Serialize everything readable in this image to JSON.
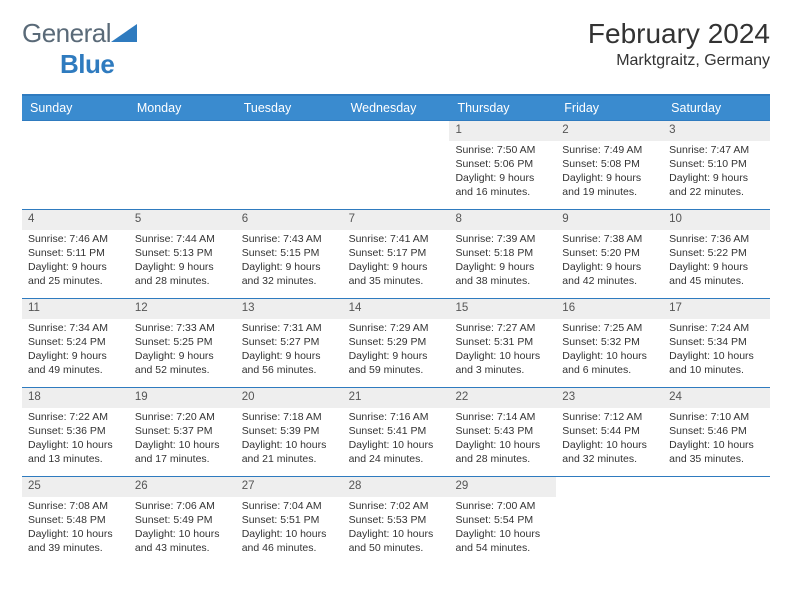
{
  "brand": {
    "part1": "General",
    "part2": "Blue",
    "text_color_1": "#5a6a78",
    "text_color_2": "#2f7bbf",
    "triangle_color": "#2f7bbf"
  },
  "header": {
    "title": "February 2024",
    "location": "Marktgraitz, Germany"
  },
  "colors": {
    "header_bg": "#3a8bcf",
    "header_text": "#ffffff",
    "rule": "#2f7bbf",
    "daynum_bg": "#eeeeee",
    "text": "#333333",
    "page_bg": "#ffffff"
  },
  "day_labels": [
    "Sunday",
    "Monday",
    "Tuesday",
    "Wednesday",
    "Thursday",
    "Friday",
    "Saturday"
  ],
  "layout": {
    "first_index": 4,
    "days_in_month": 29,
    "rows": 5,
    "cols": 7
  },
  "days": {
    "1": {
      "sunrise": "7:50 AM",
      "sunset": "5:06 PM",
      "daylight": "9 hours and 16 minutes."
    },
    "2": {
      "sunrise": "7:49 AM",
      "sunset": "5:08 PM",
      "daylight": "9 hours and 19 minutes."
    },
    "3": {
      "sunrise": "7:47 AM",
      "sunset": "5:10 PM",
      "daylight": "9 hours and 22 minutes."
    },
    "4": {
      "sunrise": "7:46 AM",
      "sunset": "5:11 PM",
      "daylight": "9 hours and 25 minutes."
    },
    "5": {
      "sunrise": "7:44 AM",
      "sunset": "5:13 PM",
      "daylight": "9 hours and 28 minutes."
    },
    "6": {
      "sunrise": "7:43 AM",
      "sunset": "5:15 PM",
      "daylight": "9 hours and 32 minutes."
    },
    "7": {
      "sunrise": "7:41 AM",
      "sunset": "5:17 PM",
      "daylight": "9 hours and 35 minutes."
    },
    "8": {
      "sunrise": "7:39 AM",
      "sunset": "5:18 PM",
      "daylight": "9 hours and 38 minutes."
    },
    "9": {
      "sunrise": "7:38 AM",
      "sunset": "5:20 PM",
      "daylight": "9 hours and 42 minutes."
    },
    "10": {
      "sunrise": "7:36 AM",
      "sunset": "5:22 PM",
      "daylight": "9 hours and 45 minutes."
    },
    "11": {
      "sunrise": "7:34 AM",
      "sunset": "5:24 PM",
      "daylight": "9 hours and 49 minutes."
    },
    "12": {
      "sunrise": "7:33 AM",
      "sunset": "5:25 PM",
      "daylight": "9 hours and 52 minutes."
    },
    "13": {
      "sunrise": "7:31 AM",
      "sunset": "5:27 PM",
      "daylight": "9 hours and 56 minutes."
    },
    "14": {
      "sunrise": "7:29 AM",
      "sunset": "5:29 PM",
      "daylight": "9 hours and 59 minutes."
    },
    "15": {
      "sunrise": "7:27 AM",
      "sunset": "5:31 PM",
      "daylight": "10 hours and 3 minutes."
    },
    "16": {
      "sunrise": "7:25 AM",
      "sunset": "5:32 PM",
      "daylight": "10 hours and 6 minutes."
    },
    "17": {
      "sunrise": "7:24 AM",
      "sunset": "5:34 PM",
      "daylight": "10 hours and 10 minutes."
    },
    "18": {
      "sunrise": "7:22 AM",
      "sunset": "5:36 PM",
      "daylight": "10 hours and 13 minutes."
    },
    "19": {
      "sunrise": "7:20 AM",
      "sunset": "5:37 PM",
      "daylight": "10 hours and 17 minutes."
    },
    "20": {
      "sunrise": "7:18 AM",
      "sunset": "5:39 PM",
      "daylight": "10 hours and 21 minutes."
    },
    "21": {
      "sunrise": "7:16 AM",
      "sunset": "5:41 PM",
      "daylight": "10 hours and 24 minutes."
    },
    "22": {
      "sunrise": "7:14 AM",
      "sunset": "5:43 PM",
      "daylight": "10 hours and 28 minutes."
    },
    "23": {
      "sunrise": "7:12 AM",
      "sunset": "5:44 PM",
      "daylight": "10 hours and 32 minutes."
    },
    "24": {
      "sunrise": "7:10 AM",
      "sunset": "5:46 PM",
      "daylight": "10 hours and 35 minutes."
    },
    "25": {
      "sunrise": "7:08 AM",
      "sunset": "5:48 PM",
      "daylight": "10 hours and 39 minutes."
    },
    "26": {
      "sunrise": "7:06 AM",
      "sunset": "5:49 PM",
      "daylight": "10 hours and 43 minutes."
    },
    "27": {
      "sunrise": "7:04 AM",
      "sunset": "5:51 PM",
      "daylight": "10 hours and 46 minutes."
    },
    "28": {
      "sunrise": "7:02 AM",
      "sunset": "5:53 PM",
      "daylight": "10 hours and 50 minutes."
    },
    "29": {
      "sunrise": "7:00 AM",
      "sunset": "5:54 PM",
      "daylight": "10 hours and 54 minutes."
    }
  },
  "labels": {
    "sunrise_prefix": "Sunrise: ",
    "sunset_prefix": "Sunset: ",
    "daylight_prefix": "Daylight: "
  }
}
